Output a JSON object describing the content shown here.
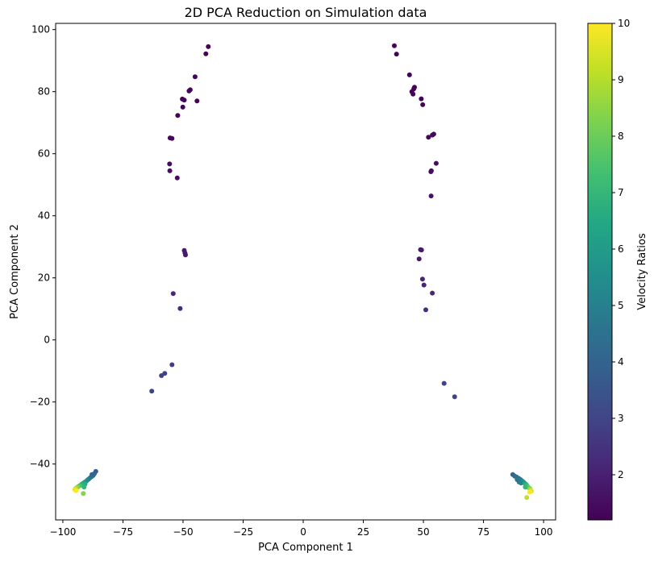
{
  "chart_data": {
    "type": "scatter",
    "title": "2D PCA Reduction on Simulation data",
    "xlabel": "PCA Component 1",
    "ylabel": "PCA Component 2",
    "xlim": [
      -103,
      105
    ],
    "ylim": [
      -58,
      102
    ],
    "xticks": [
      -100,
      -75,
      -50,
      -25,
      0,
      25,
      50,
      75,
      100
    ],
    "yticks": [
      -40,
      -20,
      0,
      20,
      40,
      60,
      80,
      100
    ],
    "grid": false,
    "colorbar": {
      "label": "Velocity Ratios",
      "range": [
        1.2,
        10
      ],
      "ticks": [
        2,
        3,
        4,
        5,
        6,
        7,
        8,
        9,
        10
      ],
      "colormap": "viridis"
    },
    "points": [
      {
        "x": -39.5,
        "y": 94.5,
        "c": 1.3
      },
      {
        "x": -40.5,
        "y": 92.2,
        "c": 1.3
      },
      {
        "x": -45.0,
        "y": 84.8,
        "c": 1.3
      },
      {
        "x": -47.0,
        "y": 80.6,
        "c": 1.3
      },
      {
        "x": -47.5,
        "y": 80.2,
        "c": 1.3
      },
      {
        "x": -50.3,
        "y": 77.6,
        "c": 1.3
      },
      {
        "x": -49.5,
        "y": 77.3,
        "c": 1.3
      },
      {
        "x": -44.2,
        "y": 77.0,
        "c": 1.3
      },
      {
        "x": -50.1,
        "y": 75.0,
        "c": 1.3
      },
      {
        "x": -52.2,
        "y": 72.3,
        "c": 1.3
      },
      {
        "x": -55.4,
        "y": 65.1,
        "c": 1.4
      },
      {
        "x": -54.6,
        "y": 64.9,
        "c": 1.4
      },
      {
        "x": -55.6,
        "y": 56.7,
        "c": 1.5
      },
      {
        "x": -55.5,
        "y": 54.5,
        "c": 1.5
      },
      {
        "x": -52.4,
        "y": 52.2,
        "c": 1.5
      },
      {
        "x": -49.5,
        "y": 28.8,
        "c": 1.8
      },
      {
        "x": -49.2,
        "y": 28.0,
        "c": 1.8
      },
      {
        "x": -49.0,
        "y": 27.4,
        "c": 1.8
      },
      {
        "x": -54.1,
        "y": 14.9,
        "c": 2.2
      },
      {
        "x": -51.2,
        "y": 10.1,
        "c": 2.3
      },
      {
        "x": -54.6,
        "y": -8.0,
        "c": 2.8
      },
      {
        "x": -57.6,
        "y": -10.8,
        "c": 2.9
      },
      {
        "x": -59.0,
        "y": -11.5,
        "c": 2.9
      },
      {
        "x": -63.0,
        "y": -16.5,
        "c": 3.0
      },
      {
        "x": 37.9,
        "y": 94.8,
        "c": 1.3
      },
      {
        "x": 38.8,
        "y": 92.1,
        "c": 1.3
      },
      {
        "x": 44.2,
        "y": 85.4,
        "c": 1.3
      },
      {
        "x": 46.3,
        "y": 81.4,
        "c": 1.3
      },
      {
        "x": 46.0,
        "y": 80.9,
        "c": 1.3
      },
      {
        "x": 45.2,
        "y": 80.0,
        "c": 1.3
      },
      {
        "x": 45.7,
        "y": 79.2,
        "c": 1.3
      },
      {
        "x": 49.1,
        "y": 77.7,
        "c": 1.3
      },
      {
        "x": 49.7,
        "y": 75.8,
        "c": 1.3
      },
      {
        "x": 54.3,
        "y": 66.3,
        "c": 1.4
      },
      {
        "x": 53.7,
        "y": 66.0,
        "c": 1.4
      },
      {
        "x": 52.1,
        "y": 65.3,
        "c": 1.4
      },
      {
        "x": 55.3,
        "y": 56.9,
        "c": 1.5
      },
      {
        "x": 53.3,
        "y": 54.5,
        "c": 1.5
      },
      {
        "x": 53.1,
        "y": 54.2,
        "c": 1.5
      },
      {
        "x": 53.2,
        "y": 46.4,
        "c": 1.6
      },
      {
        "x": 49.2,
        "y": 29.0,
        "c": 1.8
      },
      {
        "x": 48.8,
        "y": 29.1,
        "c": 1.8
      },
      {
        "x": 48.2,
        "y": 26.1,
        "c": 1.8
      },
      {
        "x": 49.6,
        "y": 19.6,
        "c": 2.1
      },
      {
        "x": 50.2,
        "y": 17.7,
        "c": 2.1
      },
      {
        "x": 53.7,
        "y": 15.1,
        "c": 2.2
      },
      {
        "x": 51.0,
        "y": 9.7,
        "c": 2.3
      },
      {
        "x": 58.6,
        "y": -14.0,
        "c": 2.9
      },
      {
        "x": 63.0,
        "y": -18.3,
        "c": 3.0
      },
      {
        "x": -86.3,
        "y": -42.4,
        "c": 3.8
      },
      {
        "x": -86.9,
        "y": -43.1,
        "c": 4.0
      },
      {
        "x": -87.4,
        "y": -43.7,
        "c": 4.2
      },
      {
        "x": -88.0,
        "y": -44.0,
        "c": 4.4
      },
      {
        "x": -88.6,
        "y": -44.4,
        "c": 4.6
      },
      {
        "x": -87.9,
        "y": -43.4,
        "c": 4.1
      },
      {
        "x": -89.2,
        "y": -44.8,
        "c": 4.8
      },
      {
        "x": -89.8,
        "y": -45.2,
        "c": 5.2
      },
      {
        "x": -90.4,
        "y": -45.6,
        "c": 5.6
      },
      {
        "x": -91.0,
        "y": -45.9,
        "c": 6.0
      },
      {
        "x": -91.6,
        "y": -46.2,
        "c": 6.4
      },
      {
        "x": -90.8,
        "y": -46.5,
        "c": 6.6
      },
      {
        "x": -92.2,
        "y": -46.5,
        "c": 6.8
      },
      {
        "x": -92.8,
        "y": -46.9,
        "c": 7.3
      },
      {
        "x": -93.4,
        "y": -47.2,
        "c": 7.8
      },
      {
        "x": -94.0,
        "y": -47.5,
        "c": 8.4
      },
      {
        "x": -94.6,
        "y": -47.8,
        "c": 9.0
      },
      {
        "x": -95.0,
        "y": -48.2,
        "c": 9.6
      },
      {
        "x": -94.5,
        "y": -48.6,
        "c": 10.0
      },
      {
        "x": -91.2,
        "y": -47.4,
        "c": 7.0
      },
      {
        "x": -91.5,
        "y": -49.5,
        "c": 8.4
      },
      {
        "x": 87.2,
        "y": -43.4,
        "c": 4.0
      },
      {
        "x": 88.0,
        "y": -43.9,
        "c": 4.2
      },
      {
        "x": 88.8,
        "y": -44.2,
        "c": 4.4
      },
      {
        "x": 89.6,
        "y": -44.6,
        "c": 4.6
      },
      {
        "x": 89.0,
        "y": -45.0,
        "c": 4.5
      },
      {
        "x": 90.4,
        "y": -45.0,
        "c": 4.9
      },
      {
        "x": 91.0,
        "y": -45.4,
        "c": 5.3
      },
      {
        "x": 89.8,
        "y": -45.8,
        "c": 4.7
      },
      {
        "x": 91.6,
        "y": -45.8,
        "c": 5.8
      },
      {
        "x": 90.6,
        "y": -46.1,
        "c": 5.0
      },
      {
        "x": 92.2,
        "y": -46.2,
        "c": 6.3
      },
      {
        "x": 92.8,
        "y": -46.6,
        "c": 6.8
      },
      {
        "x": 93.2,
        "y": -47.1,
        "c": 7.3
      },
      {
        "x": 93.7,
        "y": -47.5,
        "c": 7.8
      },
      {
        "x": 92.4,
        "y": -47.4,
        "c": 7.0
      },
      {
        "x": 94.3,
        "y": -47.9,
        "c": 8.4
      },
      {
        "x": 94.6,
        "y": -48.3,
        "c": 9.0
      },
      {
        "x": 94.9,
        "y": -48.7,
        "c": 9.6
      },
      {
        "x": 94.2,
        "y": -49.0,
        "c": 10.0
      },
      {
        "x": 93.0,
        "y": -50.8,
        "c": 9.2
      }
    ]
  }
}
